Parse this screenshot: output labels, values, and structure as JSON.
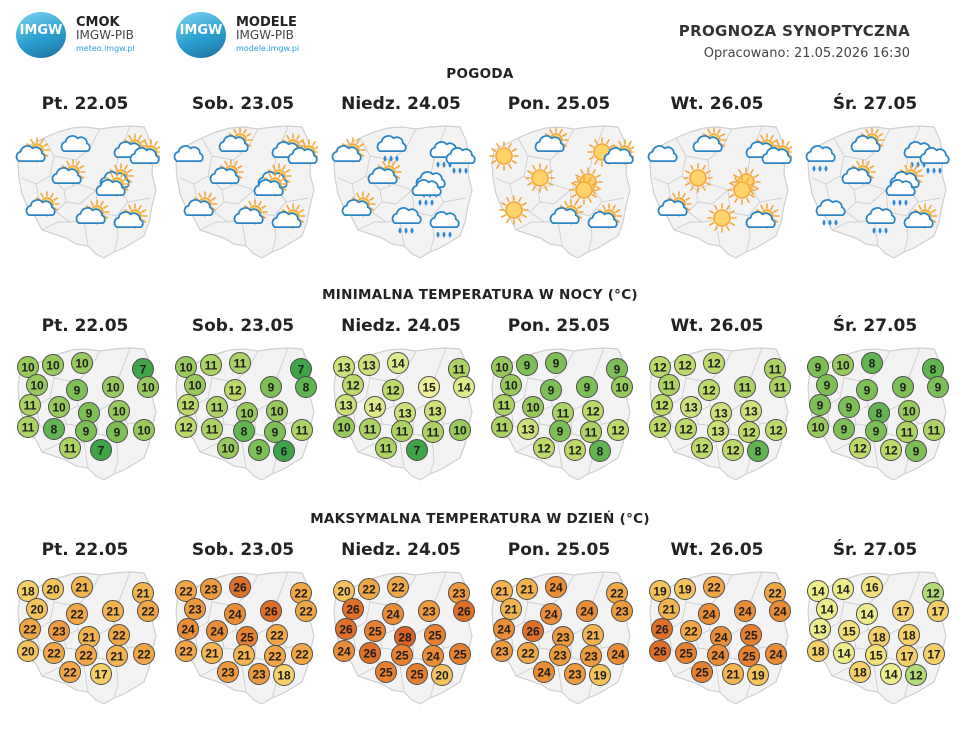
{
  "header": {
    "logo1": {
      "name": "CMOK",
      "org": "IMGW-PIB",
      "url": "meteo.imgw.pl",
      "badge": "IMGW"
    },
    "logo2": {
      "name": "MODELE",
      "org": "IMGW-PIB",
      "url": "modele.imgw.pl",
      "badge": "IMGW"
    },
    "title": "PROGNOZA SYNOPTYCZNA",
    "issued": "Opracowano: 21.05.2026 16:30"
  },
  "sections": {
    "weather": "POGODA",
    "tmin": "MINIMALNA TEMPERATURA W NOCY (°C)",
    "tmax": "MAKSYMALNA TEMPERATURA W DZIEŃ (°C)"
  },
  "days": [
    "Pt. 22.05",
    "Sob. 23.05",
    "Niedz. 24.05",
    "Pon. 25.05",
    "Wt. 26.05",
    "Śr. 27.05"
  ],
  "weather_icons": [
    [
      "partly-cloudy",
      "cloud",
      "partly-cloudy",
      "partly-cloudy",
      "partly-cloudy",
      "partly-cloudy",
      "partly-cloudy",
      "partly-cloudy",
      "partly-cloudy",
      "partly-cloudy"
    ],
    [
      "cloud",
      "partly-cloudy",
      "partly-cloudy",
      "partly-cloudy",
      "partly-cloudy",
      "partly-cloudy",
      "partly-cloudy",
      "partly-cloudy",
      "partly-cloudy",
      "partly-cloudy"
    ],
    [
      "partly-cloudy",
      "cloud-rain",
      "cloud-rain",
      "partly-cloudy",
      "cloud-rain",
      "partly-cloudy",
      "cloud-rain",
      "cloud-rain",
      "cloud-rain",
      "cloud-rain"
    ],
    [
      "sun",
      "partly-cloudy",
      "sun",
      "sun",
      "sun",
      "sun",
      "partly-cloudy",
      "partly-cloudy",
      "partly-cloudy",
      "sun"
    ],
    [
      "cloud",
      "partly-cloudy",
      "partly-cloudy",
      "sun",
      "sun",
      "partly-cloudy",
      "sun",
      "partly-cloudy",
      "partly-cloudy",
      "sun"
    ],
    [
      "cloud-rain",
      "partly-cloudy",
      "cloud-rain",
      "partly-cloudy",
      "partly-cloudy",
      "cloud-rain",
      "cloud-rain",
      "partly-cloudy",
      "cloud-rain",
      "cloud-rain"
    ]
  ],
  "tmin": [
    [
      10,
      10,
      10,
      7,
      10,
      9,
      10,
      10,
      11,
      10,
      9,
      10,
      11,
      8,
      9,
      9,
      10,
      11,
      7
    ],
    [
      10,
      11,
      11,
      7,
      10,
      12,
      9,
      8,
      12,
      11,
      10,
      10,
      12,
      11,
      8,
      9,
      11,
      10,
      9,
      6
    ],
    [
      13,
      13,
      14,
      11,
      12,
      12,
      15,
      14,
      13,
      14,
      13,
      13,
      10,
      11,
      11,
      11,
      10,
      11,
      7
    ],
    [
      10,
      9,
      9,
      9,
      10,
      9,
      9,
      10,
      11,
      10,
      11,
      12,
      11,
      13,
      9,
      11,
      12,
      12,
      12,
      8
    ],
    [
      12,
      12,
      12,
      11,
      11,
      12,
      11,
      11,
      12,
      13,
      13,
      13,
      12,
      12,
      13,
      12,
      12,
      12,
      12,
      8
    ],
    [
      9,
      10,
      8,
      8,
      9,
      9,
      9,
      9,
      9,
      9,
      8,
      10,
      10,
      9,
      9,
      11,
      11,
      12,
      12,
      9
    ]
  ],
  "tmax": [
    [
      18,
      20,
      21,
      21,
      20,
      22,
      21,
      22,
      22,
      23,
      21,
      22,
      20,
      22,
      22,
      21,
      22,
      22,
      17
    ],
    [
      22,
      23,
      26,
      22,
      23,
      24,
      26,
      22,
      24,
      24,
      25,
      22,
      22,
      21,
      21,
      22,
      22,
      23,
      23,
      18
    ],
    [
      20,
      22,
      22,
      23,
      26,
      24,
      23,
      26,
      26,
      25,
      28,
      25,
      24,
      26,
      25,
      24,
      25,
      25,
      25,
      20
    ],
    [
      21,
      21,
      24,
      22,
      21,
      24,
      24,
      23,
      24,
      26,
      23,
      21,
      23,
      22,
      23,
      23,
      24,
      24,
      23,
      19
    ],
    [
      19,
      19,
      22,
      22,
      21,
      24,
      24,
      24,
      26,
      22,
      24,
      25,
      26,
      25,
      24,
      25,
      24,
      25,
      21,
      19
    ],
    [
      14,
      14,
      16,
      12,
      14,
      14,
      17,
      17,
      13,
      15,
      18,
      18,
      18,
      14,
      15,
      17,
      17,
      18,
      14,
      12
    ]
  ],
  "colors": {
    "map_fill": "#f3f3f3",
    "map_stroke": "#cfcfcf",
    "cloud": "#ffffff",
    "cloud_outline": "#2b86c8",
    "sun": "#f3a83a",
    "rain": "#2f8ad6"
  }
}
